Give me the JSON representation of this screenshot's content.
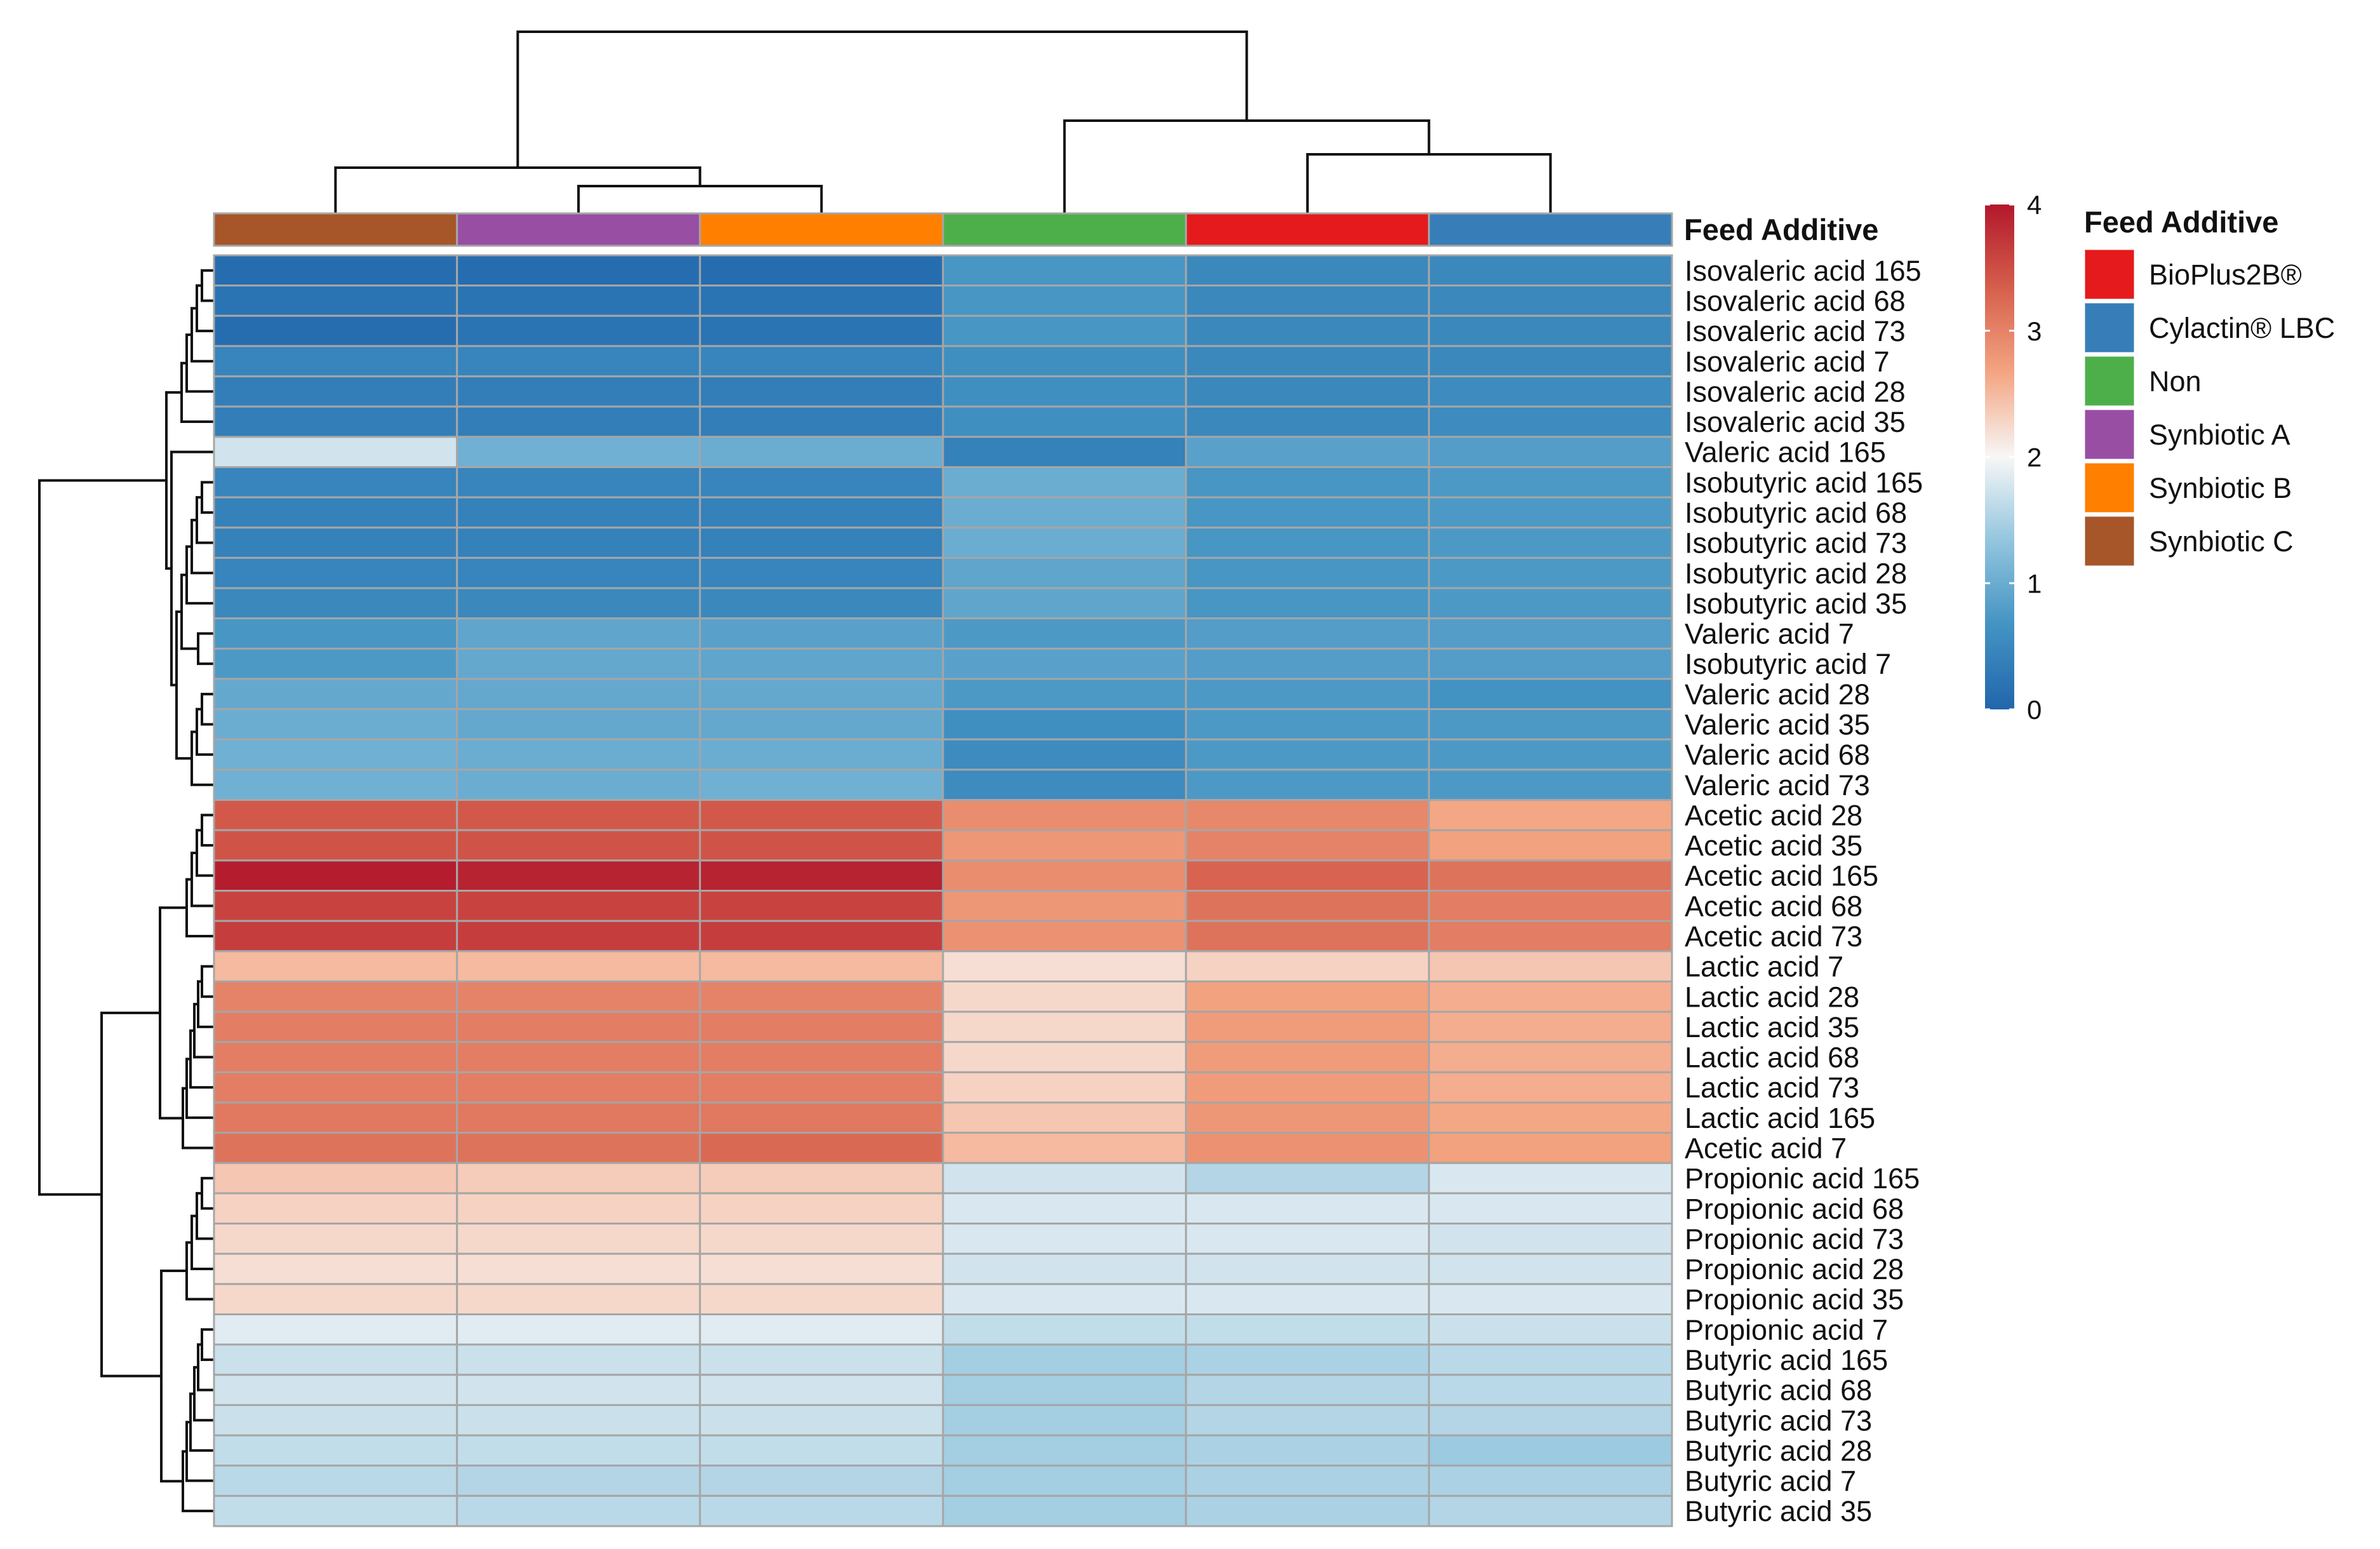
{
  "chart_data": {
    "type": "heatmap",
    "columns": [
      "Synbiotic C",
      "Synbiotic A",
      "Synbiotic B",
      "Non",
      "BioPlus2B®",
      "Cylactin® LBC"
    ],
    "column_annotation_label": "Feed Additive",
    "rows": [
      "Isovaleric acid 165",
      "Isovaleric acid 68",
      "Isovaleric acid 73",
      "Isovaleric acid 7",
      "Isovaleric acid 28",
      "Isovaleric acid 35",
      "Valeric acid 165",
      "Isobutyric acid 165",
      "Isobutyric acid 68",
      "Isobutyric acid 73",
      "Isobutyric acid 28",
      "Isobutyric acid 35",
      "Valeric acid 7",
      "Isobutyric acid 7",
      "Valeric acid 28",
      "Valeric acid 35",
      "Valeric acid 68",
      "Valeric acid 73",
      "Acetic acid 28",
      "Acetic acid 35",
      "Acetic acid 165",
      "Acetic acid 68",
      "Acetic acid 73",
      "Lactic acid 7",
      "Lactic acid 28",
      "Lactic acid 35",
      "Lactic acid 68",
      "Lactic acid 73",
      "Lactic acid 165",
      "Acetic acid 7",
      "Propionic acid 165",
      "Propionic acid 68",
      "Propionic acid 73",
      "Propionic acid 28",
      "Propionic acid 35",
      "Propionic acid 7",
      "Butyric acid 165",
      "Butyric acid 68",
      "Butyric acid 73",
      "Butyric acid 28",
      "Butyric acid 7",
      "Butyric acid 35"
    ],
    "values": [
      [
        0.1,
        0.1,
        0.1,
        0.7,
        0.5,
        0.5
      ],
      [
        0.2,
        0.2,
        0.2,
        0.7,
        0.5,
        0.5
      ],
      [
        0.1,
        0.2,
        0.2,
        0.7,
        0.5,
        0.5
      ],
      [
        0.45,
        0.45,
        0.45,
        0.6,
        0.5,
        0.5
      ],
      [
        0.35,
        0.35,
        0.35,
        0.6,
        0.5,
        0.55
      ],
      [
        0.35,
        0.35,
        0.35,
        0.6,
        0.5,
        0.55
      ],
      [
        1.75,
        1.05,
        1.0,
        0.4,
        0.85,
        0.8
      ],
      [
        0.45,
        0.45,
        0.45,
        1.0,
        0.7,
        0.75
      ],
      [
        0.4,
        0.4,
        0.4,
        1.0,
        0.7,
        0.75
      ],
      [
        0.4,
        0.4,
        0.4,
        1.0,
        0.7,
        0.75
      ],
      [
        0.45,
        0.45,
        0.45,
        0.9,
        0.7,
        0.75
      ],
      [
        0.5,
        0.5,
        0.5,
        0.9,
        0.7,
        0.75
      ],
      [
        0.7,
        0.9,
        0.85,
        0.75,
        0.8,
        0.8
      ],
      [
        0.75,
        0.95,
        0.9,
        0.85,
        0.8,
        0.8
      ],
      [
        0.95,
        0.95,
        0.95,
        0.75,
        0.75,
        0.65
      ],
      [
        1.0,
        0.95,
        0.95,
        0.6,
        0.75,
        0.75
      ],
      [
        1.05,
        1.0,
        1.0,
        0.55,
        0.75,
        0.75
      ],
      [
        1.05,
        1.0,
        1.05,
        0.55,
        0.75,
        0.75
      ],
      [
        3.4,
        3.4,
        3.4,
        2.9,
        2.95,
        2.65
      ],
      [
        3.45,
        3.45,
        3.45,
        2.8,
        3.0,
        2.7
      ],
      [
        3.95,
        3.9,
        3.9,
        2.9,
        3.3,
        3.15
      ],
      [
        3.6,
        3.6,
        3.6,
        2.8,
        3.15,
        3.05
      ],
      [
        3.65,
        3.65,
        3.65,
        2.85,
        3.15,
        3.05
      ],
      [
        2.5,
        2.5,
        2.5,
        2.2,
        2.3,
        2.4
      ],
      [
        3.0,
        3.0,
        3.0,
        2.25,
        2.7,
        2.6
      ],
      [
        3.05,
        3.05,
        3.05,
        2.25,
        2.75,
        2.6
      ],
      [
        3.05,
        3.05,
        3.05,
        2.25,
        2.75,
        2.6
      ],
      [
        3.05,
        3.05,
        3.05,
        2.3,
        2.75,
        2.6
      ],
      [
        3.1,
        3.1,
        3.1,
        2.4,
        2.8,
        2.65
      ],
      [
        3.15,
        3.15,
        3.25,
        2.5,
        2.85,
        2.7
      ],
      [
        2.4,
        2.35,
        2.35,
        1.75,
        1.55,
        1.8
      ],
      [
        2.3,
        2.3,
        2.3,
        1.8,
        1.8,
        1.8
      ],
      [
        2.25,
        2.25,
        2.25,
        1.8,
        1.8,
        1.75
      ],
      [
        2.2,
        2.2,
        2.2,
        1.75,
        1.75,
        1.75
      ],
      [
        2.25,
        2.25,
        2.25,
        1.8,
        1.8,
        1.8
      ],
      [
        1.85,
        1.85,
        1.85,
        1.65,
        1.65,
        1.7
      ],
      [
        1.7,
        1.7,
        1.7,
        1.45,
        1.5,
        1.6
      ],
      [
        1.75,
        1.75,
        1.75,
        1.45,
        1.55,
        1.6
      ],
      [
        1.7,
        1.7,
        1.7,
        1.45,
        1.55,
        1.55
      ],
      [
        1.65,
        1.65,
        1.65,
        1.45,
        1.5,
        1.4
      ],
      [
        1.6,
        1.55,
        1.55,
        1.45,
        1.5,
        1.5
      ],
      [
        1.65,
        1.6,
        1.6,
        1.45,
        1.5,
        1.55
      ]
    ],
    "color_scale": {
      "min": 0,
      "max": 4,
      "ticks": [
        "0",
        "1",
        "2",
        "3",
        "4"
      ],
      "colors": [
        "#2166ac",
        "#4393c3",
        "#92c5de",
        "#f7f7f7",
        "#f4a582",
        "#d6604d",
        "#b2182b"
      ]
    },
    "legend": {
      "title": "Feed Additive",
      "items": [
        {
          "label": "BioPlus2B®",
          "color": "#e41a1c"
        },
        {
          "label": "Cylactin® LBC",
          "color": "#377eb8"
        },
        {
          "label": "Non",
          "color": "#4daf4a"
        },
        {
          "label": "Synbiotic A",
          "color": "#984ea3"
        },
        {
          "label": "Synbiotic B",
          "color": "#ff7f00"
        },
        {
          "label": "Synbiotic C",
          "color": "#a65628"
        }
      ]
    },
    "dendrograms": {
      "rows": true,
      "columns": true
    },
    "grid": true
  }
}
